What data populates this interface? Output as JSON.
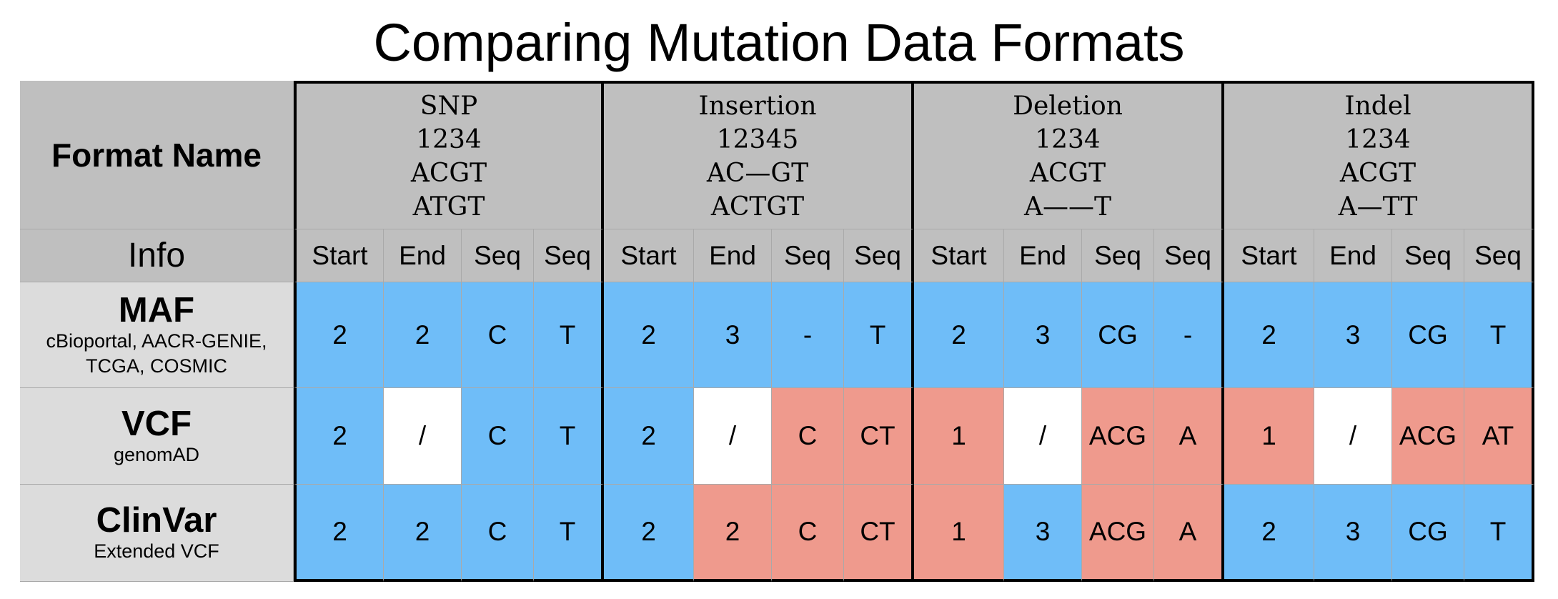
{
  "title": "Comparing Mutation Data Formats",
  "header": {
    "format_name": "Format Name",
    "info": "Info"
  },
  "mutations": [
    {
      "name": "SNP",
      "line1": "1234",
      "line2": "ACGT",
      "line3": "ATGT"
    },
    {
      "name": "Insertion",
      "line1": "12345",
      "line2": "AC—GT",
      "line3": "ACTGT"
    },
    {
      "name": "Deletion",
      "line1": "1234",
      "line2": "ACGT",
      "line3": "A——T"
    },
    {
      "name": "Indel",
      "line1": "1234",
      "line2": "ACGT",
      "line3": "A—TT"
    }
  ],
  "subcolumns": [
    "Start",
    "End",
    "Seq",
    "Seq"
  ],
  "rows": [
    {
      "name": "MAF",
      "subtitle": "cBioportal, AACR-GENIE,\nTCGA,  COSMIC",
      "cells": [
        {
          "v": "2",
          "c": "blue"
        },
        {
          "v": "2",
          "c": "blue"
        },
        {
          "v": "C",
          "c": "blue"
        },
        {
          "v": "T",
          "c": "blue"
        },
        {
          "v": "2",
          "c": "blue"
        },
        {
          "v": "3",
          "c": "blue"
        },
        {
          "v": "-",
          "c": "blue"
        },
        {
          "v": "T",
          "c": "blue"
        },
        {
          "v": "2",
          "c": "blue"
        },
        {
          "v": "3",
          "c": "blue"
        },
        {
          "v": "CG",
          "c": "blue"
        },
        {
          "v": "-",
          "c": "blue"
        },
        {
          "v": "2",
          "c": "blue"
        },
        {
          "v": "3",
          "c": "blue"
        },
        {
          "v": "CG",
          "c": "blue"
        },
        {
          "v": "T",
          "c": "blue"
        }
      ]
    },
    {
      "name": "VCF",
      "subtitle": "genomAD",
      "cells": [
        {
          "v": "2",
          "c": "blue"
        },
        {
          "v": "/",
          "c": "white"
        },
        {
          "v": "C",
          "c": "blue"
        },
        {
          "v": "T",
          "c": "blue"
        },
        {
          "v": "2",
          "c": "blue"
        },
        {
          "v": "/",
          "c": "white"
        },
        {
          "v": "C",
          "c": "red"
        },
        {
          "v": "CT",
          "c": "red"
        },
        {
          "v": "1",
          "c": "red"
        },
        {
          "v": "/",
          "c": "white"
        },
        {
          "v": "ACG",
          "c": "red"
        },
        {
          "v": "A",
          "c": "red"
        },
        {
          "v": "1",
          "c": "red"
        },
        {
          "v": "/",
          "c": "white"
        },
        {
          "v": "ACG",
          "c": "red"
        },
        {
          "v": "AT",
          "c": "red"
        }
      ]
    },
    {
      "name": "ClinVar",
      "subtitle": "Extended VCF",
      "cells": [
        {
          "v": "2",
          "c": "blue"
        },
        {
          "v": "2",
          "c": "blue"
        },
        {
          "v": "C",
          "c": "blue"
        },
        {
          "v": "T",
          "c": "blue"
        },
        {
          "v": "2",
          "c": "blue"
        },
        {
          "v": "2",
          "c": "red"
        },
        {
          "v": "C",
          "c": "red"
        },
        {
          "v": "CT",
          "c": "red"
        },
        {
          "v": "1",
          "c": "red"
        },
        {
          "v": "3",
          "c": "blue"
        },
        {
          "v": "ACG",
          "c": "red"
        },
        {
          "v": "A",
          "c": "red"
        },
        {
          "v": "2",
          "c": "blue"
        },
        {
          "v": "3",
          "c": "blue"
        },
        {
          "v": "CG",
          "c": "blue"
        },
        {
          "v": "T",
          "c": "blue"
        }
      ]
    }
  ],
  "colors": {
    "blue": "#6fbdf8",
    "red": "#ef9a8d",
    "white": "#ffffff",
    "header_gray": "#bfbfbf",
    "row_header_gray": "#dcdcdc"
  }
}
